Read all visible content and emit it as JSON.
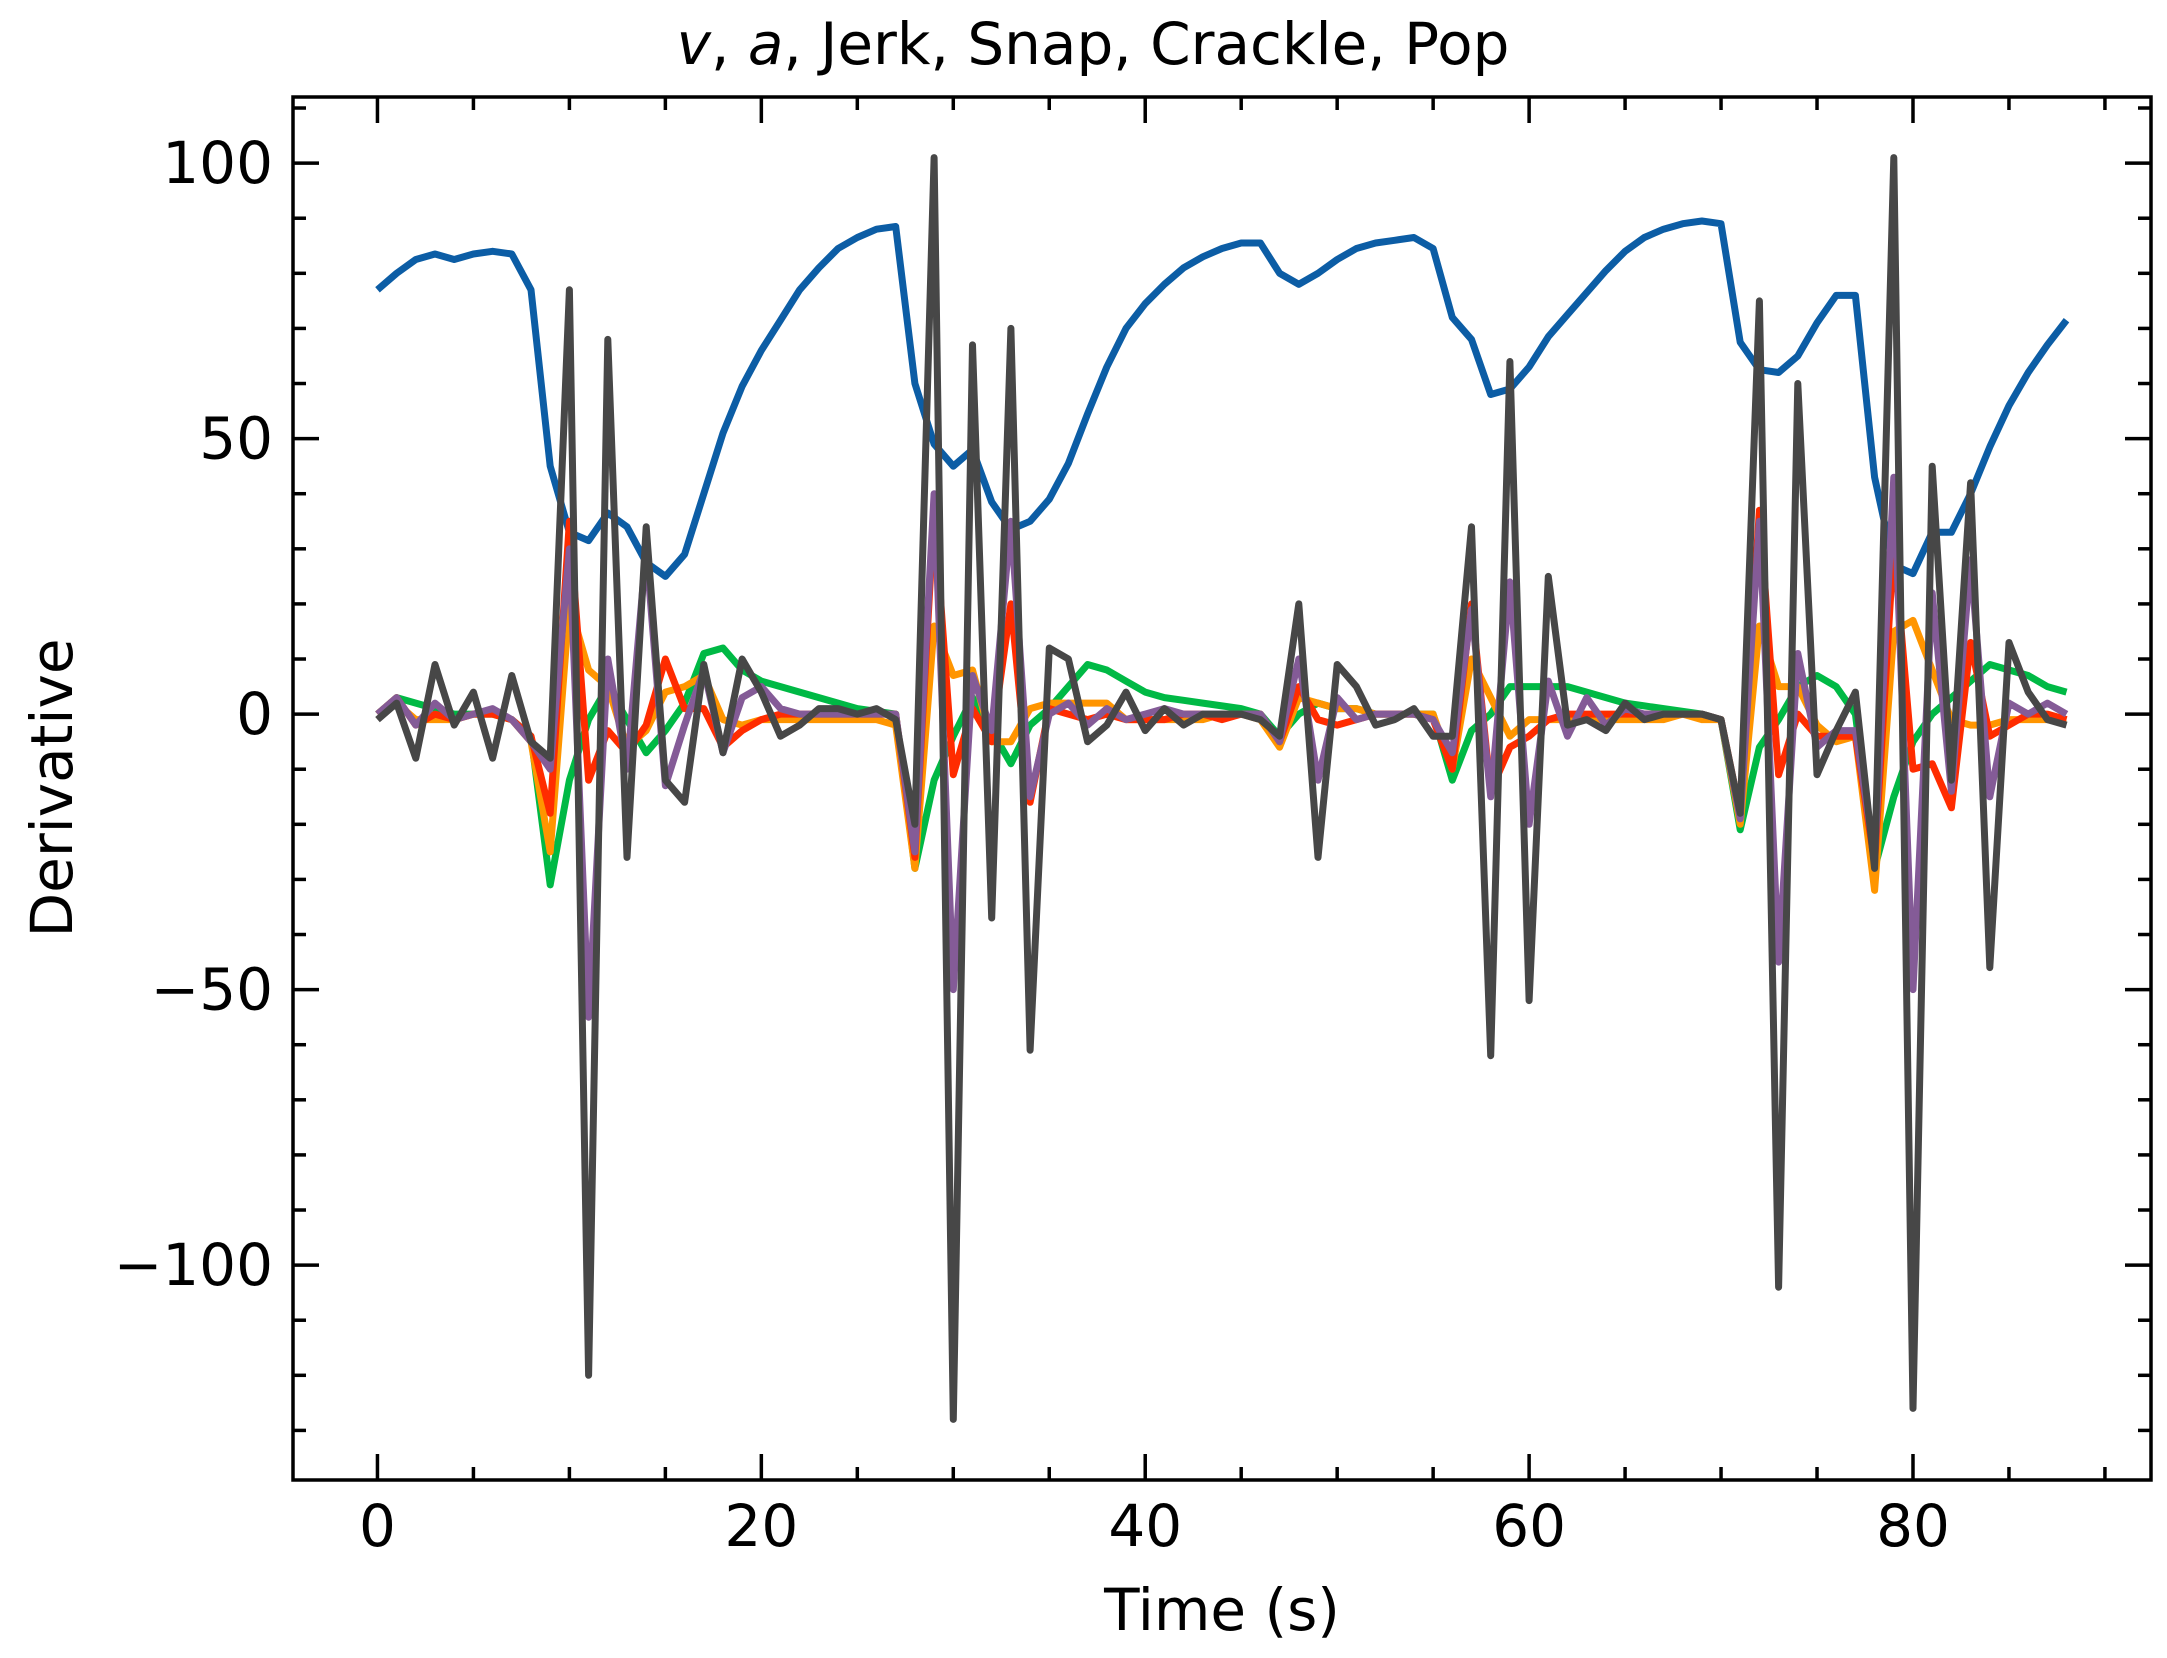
{
  "chart_data": {
    "type": "line",
    "title": "v, a,  Jerk, Snap, Crackle, Pop",
    "title_parts": {
      "v": "v",
      "sep1": ", ",
      "a": "a",
      "rest": ",  Jerk, Snap, Crackle, Pop"
    },
    "xlabel": "Time (s)",
    "ylabel": "Derivative",
    "xlim": [
      -4.4,
      92.4
    ],
    "ylim": [
      -139,
      112
    ],
    "xticks": [
      0,
      20,
      40,
      60,
      80
    ],
    "yticks": [
      -100,
      -50,
      0,
      50,
      100
    ],
    "xtick_labels": [
      "0",
      "20",
      "40",
      "60",
      "80"
    ],
    "ytick_labels": [
      "−100",
      "−50",
      "0",
      "50",
      "100"
    ],
    "grid": false,
    "legend": "none",
    "x": [
      0,
      1,
      2,
      3,
      4,
      5,
      6,
      7,
      8,
      9,
      10,
      11,
      12,
      13,
      14,
      15,
      16,
      17,
      18,
      19,
      20,
      21,
      22,
      23,
      24,
      25,
      26,
      27,
      28,
      29,
      30,
      31,
      32,
      33,
      34,
      35,
      36,
      37,
      38,
      39,
      40,
      41,
      42,
      43,
      44,
      45,
      46,
      47,
      48,
      49,
      50,
      51,
      52,
      53,
      54,
      55,
      56,
      57,
      58,
      59,
      60,
      61,
      62,
      63,
      64,
      65,
      66,
      67,
      68,
      69,
      70,
      71,
      72,
      73,
      74,
      75,
      76,
      77,
      78,
      79,
      80,
      81,
      82,
      83,
      84,
      85,
      86,
      87,
      88
    ],
    "series": [
      {
        "color": "#0C5DA5",
        "values": [
          77,
          80,
          82.5,
          83.5,
          82.5,
          83.5,
          84,
          83.5,
          77,
          45,
          33,
          31.5,
          36.5,
          34,
          27.5,
          25,
          29,
          40,
          51,
          59.5,
          66,
          71.5,
          77,
          81,
          84.5,
          86.5,
          88,
          88.5,
          60,
          49,
          45,
          48,
          38.5,
          33.5,
          35,
          39,
          45.5,
          54.5,
          63,
          70,
          74.5,
          78,
          81,
          83,
          84.5,
          85.5,
          85.5,
          80,
          78,
          80,
          82.5,
          84.5,
          85.5,
          86,
          86.5,
          84.5,
          72,
          68,
          58,
          59,
          63,
          68.5,
          72.5,
          76.5,
          80.5,
          84,
          86.5,
          88,
          89,
          89.5,
          89,
          67.5,
          62.5,
          62,
          65,
          71,
          76,
          76,
          43,
          27,
          25.5,
          33,
          33,
          40,
          48.5,
          56,
          62,
          67,
          71.5
        ]
      },
      {
        "color": "#00B945",
        "values": [
          0,
          3,
          2,
          1,
          0,
          0,
          0,
          -1,
          -4,
          -31,
          -12,
          -1,
          5,
          -1,
          -7,
          -3,
          2,
          11,
          12,
          8,
          6,
          5,
          4,
          3,
          2,
          1,
          0.5,
          0,
          -28,
          -12,
          -4,
          3,
          -3,
          -9,
          -2,
          1,
          5,
          9,
          8,
          6,
          4,
          3,
          2.5,
          2,
          1.5,
          1,
          0,
          -4,
          0,
          2,
          1,
          1,
          0,
          0,
          0,
          0,
          -12,
          -3,
          0,
          5,
          5,
          5,
          5,
          4,
          3,
          2,
          1.5,
          1,
          0.5,
          0,
          -1,
          -21,
          -6,
          -1,
          5,
          7,
          5,
          0,
          -28,
          -15,
          -5,
          0,
          3,
          6,
          9,
          8,
          7,
          5,
          4
        ]
      },
      {
        "color": "#FF9500",
        "values": [
          0,
          2,
          -1,
          -1,
          -1,
          0,
          0,
          -1,
          -5,
          -25,
          20,
          8,
          5,
          -6,
          -3,
          4,
          5,
          7,
          -1,
          -2,
          -1,
          -1,
          -1,
          -1,
          -1,
          -1,
          -1,
          -2,
          -28,
          16,
          7,
          8,
          -5,
          -5,
          1,
          2,
          2,
          2,
          2,
          -1,
          -1,
          -1,
          -1,
          -1,
          0,
          0,
          -1,
          -6,
          3,
          2,
          1,
          1,
          0,
          0,
          0,
          0,
          -10,
          10,
          3,
          -4,
          -1,
          -1,
          -1,
          -1,
          -1,
          -1,
          -1,
          -1,
          0,
          -1,
          -1,
          -20,
          16,
          5,
          5,
          -2,
          -5,
          -4,
          -32,
          15,
          17,
          8,
          -1,
          -2,
          -2,
          -1,
          -1,
          -1,
          -1
        ]
      },
      {
        "color": "#FF2C00",
        "values": [
          0,
          3,
          -2,
          0,
          -1,
          0,
          0,
          -1,
          -4,
          -18,
          35,
          -12,
          -3,
          -7,
          -2,
          10,
          1,
          1,
          -6,
          -3,
          -1,
          0,
          0,
          0,
          0,
          0,
          0,
          0,
          -26,
          37,
          -11,
          1,
          -5,
          20,
          -16,
          1,
          0,
          -1,
          0,
          -1,
          -1,
          -1,
          0,
          0,
          -1,
          0,
          0,
          -5,
          5,
          -1,
          -2,
          -1,
          0,
          0,
          0,
          -1,
          -10,
          20,
          -14,
          -6,
          -4,
          -1,
          0,
          0,
          0,
          0,
          0,
          0,
          0,
          0,
          -1,
          -18,
          37,
          -11,
          0,
          -4,
          -4,
          -4,
          -27,
          31,
          -10,
          -9,
          -17,
          13,
          -4,
          -2,
          0,
          0,
          -1
        ]
      },
      {
        "color": "#845B97",
        "values": [
          0,
          3,
          -2,
          2,
          -1,
          0,
          1,
          -1,
          -5,
          -10,
          30,
          -55,
          10,
          -10,
          30,
          -13,
          -2,
          8,
          -7,
          3,
          5,
          1,
          0,
          0,
          0,
          0,
          0,
          0,
          -25,
          40,
          -50,
          7,
          -3,
          35,
          -15,
          0,
          2,
          -2,
          1,
          -1,
          0,
          1,
          0,
          0,
          0,
          0,
          0,
          -5,
          10,
          -12,
          3,
          -1,
          0,
          0,
          0,
          -1,
          -7,
          19,
          -15,
          24,
          -20,
          6,
          -4,
          3,
          -2,
          1,
          0,
          0,
          0,
          0,
          -1,
          -19,
          35,
          -45,
          11,
          -6,
          -3,
          -3,
          -26,
          43,
          -50,
          22,
          -14,
          28,
          -15,
          2,
          0,
          2,
          0
        ]
      },
      {
        "color": "#474747",
        "values": [
          -1,
          2,
          -8,
          9,
          -2,
          4,
          -8,
          7,
          -5,
          -8,
          77,
          -120,
          68,
          -26,
          34,
          -12,
          -16,
          9,
          -7,
          10,
          4,
          -4,
          -2,
          1,
          1,
          0,
          1,
          -1,
          -20,
          101,
          -128,
          67,
          -37,
          70,
          -61,
          12,
          10,
          -5,
          -2,
          4,
          -3,
          1,
          -2,
          0,
          0,
          0,
          -1,
          -4,
          20,
          -26,
          9,
          5,
          -2,
          -1,
          1,
          -4,
          -4,
          34,
          -62,
          64,
          -52,
          25,
          -2,
          -1,
          -3,
          2,
          -1,
          0,
          0,
          0,
          -1,
          -18,
          75,
          -104,
          60,
          -11,
          -3,
          4,
          -28,
          101,
          -126,
          45,
          -12,
          42,
          -46,
          13,
          4,
          -1,
          -2
        ]
      }
    ]
  }
}
